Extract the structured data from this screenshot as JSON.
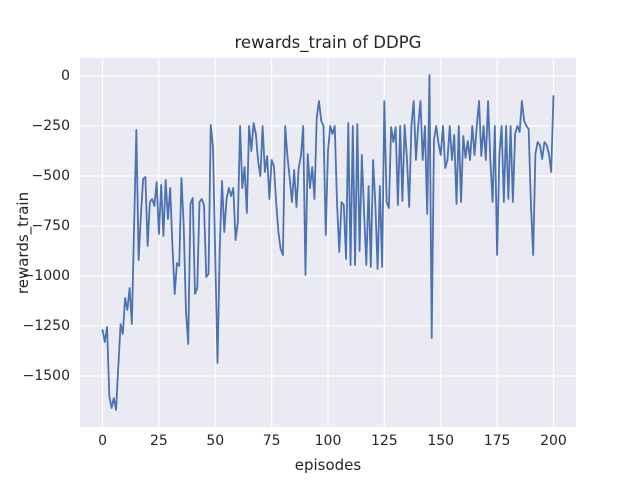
{
  "chart_data": {
    "type": "line",
    "title": "rewards_train of DDPG",
    "xlabel": "episodes",
    "ylabel": "rewards_train",
    "grid": true,
    "legend": "none",
    "background_color": "#eaeaf2",
    "grid_color": "#ffffff",
    "text_color": "#262626",
    "line_color": "#4c72b0",
    "xlim": [
      -10,
      210
    ],
    "ylim": [
      -1755,
      90
    ],
    "x_ticks": [
      0,
      25,
      50,
      75,
      100,
      125,
      150,
      175,
      200
    ],
    "x_tick_labels": [
      "0",
      "25",
      "50",
      "75",
      "100",
      "125",
      "150",
      "175",
      "200"
    ],
    "y_ticks": [
      0,
      -250,
      -500,
      -750,
      -1000,
      -1250,
      -1500
    ],
    "y_tick_labels": [
      "0",
      "−250",
      "−500",
      "−750",
      "−1000",
      "−1250",
      "−1500"
    ],
    "series": [
      {
        "name": "rewards_train",
        "x_start": 0,
        "x_step": 1,
        "values": [
          -1270,
          -1330,
          -1255,
          -1600,
          -1660,
          -1610,
          -1670,
          -1450,
          -1240,
          -1290,
          -1110,
          -1170,
          -1060,
          -1240,
          -750,
          -270,
          -920,
          -700,
          -515,
          -505,
          -850,
          -630,
          -615,
          -650,
          -530,
          -790,
          -545,
          -800,
          -520,
          -715,
          -560,
          -850,
          -1090,
          -935,
          -950,
          -510,
          -750,
          -1175,
          -1340,
          -640,
          -610,
          -1090,
          -1060,
          -630,
          -615,
          -645,
          -1005,
          -990,
          -245,
          -360,
          -905,
          -1435,
          -855,
          -525,
          -780,
          -615,
          -560,
          -600,
          -560,
          -820,
          -730,
          -250,
          -560,
          -455,
          -685,
          -250,
          -375,
          -235,
          -290,
          -425,
          -500,
          -250,
          -480,
          -400,
          -615,
          -420,
          -450,
          -630,
          -780,
          -865,
          -895,
          -250,
          -400,
          -510,
          -630,
          -470,
          -655,
          -460,
          -400,
          -250,
          -995,
          -390,
          -560,
          -455,
          -615,
          -210,
          -125,
          -225,
          -250,
          -795,
          -375,
          -250,
          -290,
          -250,
          -635,
          -880,
          -630,
          -645,
          -915,
          -235,
          -945,
          -250,
          -945,
          -240,
          -875,
          -395,
          -680,
          -945,
          -550,
          -955,
          -420,
          -640,
          -965,
          -550,
          -955,
          -125,
          -630,
          -660,
          -255,
          -330,
          -255,
          -645,
          -250,
          -625,
          -245,
          -410,
          -655,
          -250,
          -125,
          -420,
          -250,
          -125,
          -420,
          -250,
          -690,
          5,
          -1310,
          -320,
          -250,
          -335,
          -395,
          -250,
          -460,
          -420,
          -250,
          -420,
          -295,
          -640,
          -250,
          -630,
          -300,
          -410,
          -325,
          -420,
          -250,
          -395,
          -250,
          -125,
          -400,
          -250,
          -420,
          -125,
          -420,
          -630,
          -250,
          -895,
          -395,
          -250,
          -630,
          -250,
          -615,
          -250,
          -630,
          -290,
          -250,
          -280,
          -125,
          -225,
          -250,
          -265,
          -640,
          -895,
          -390,
          -330,
          -345,
          -415,
          -330,
          -345,
          -390,
          -480,
          -100
        ]
      }
    ]
  }
}
